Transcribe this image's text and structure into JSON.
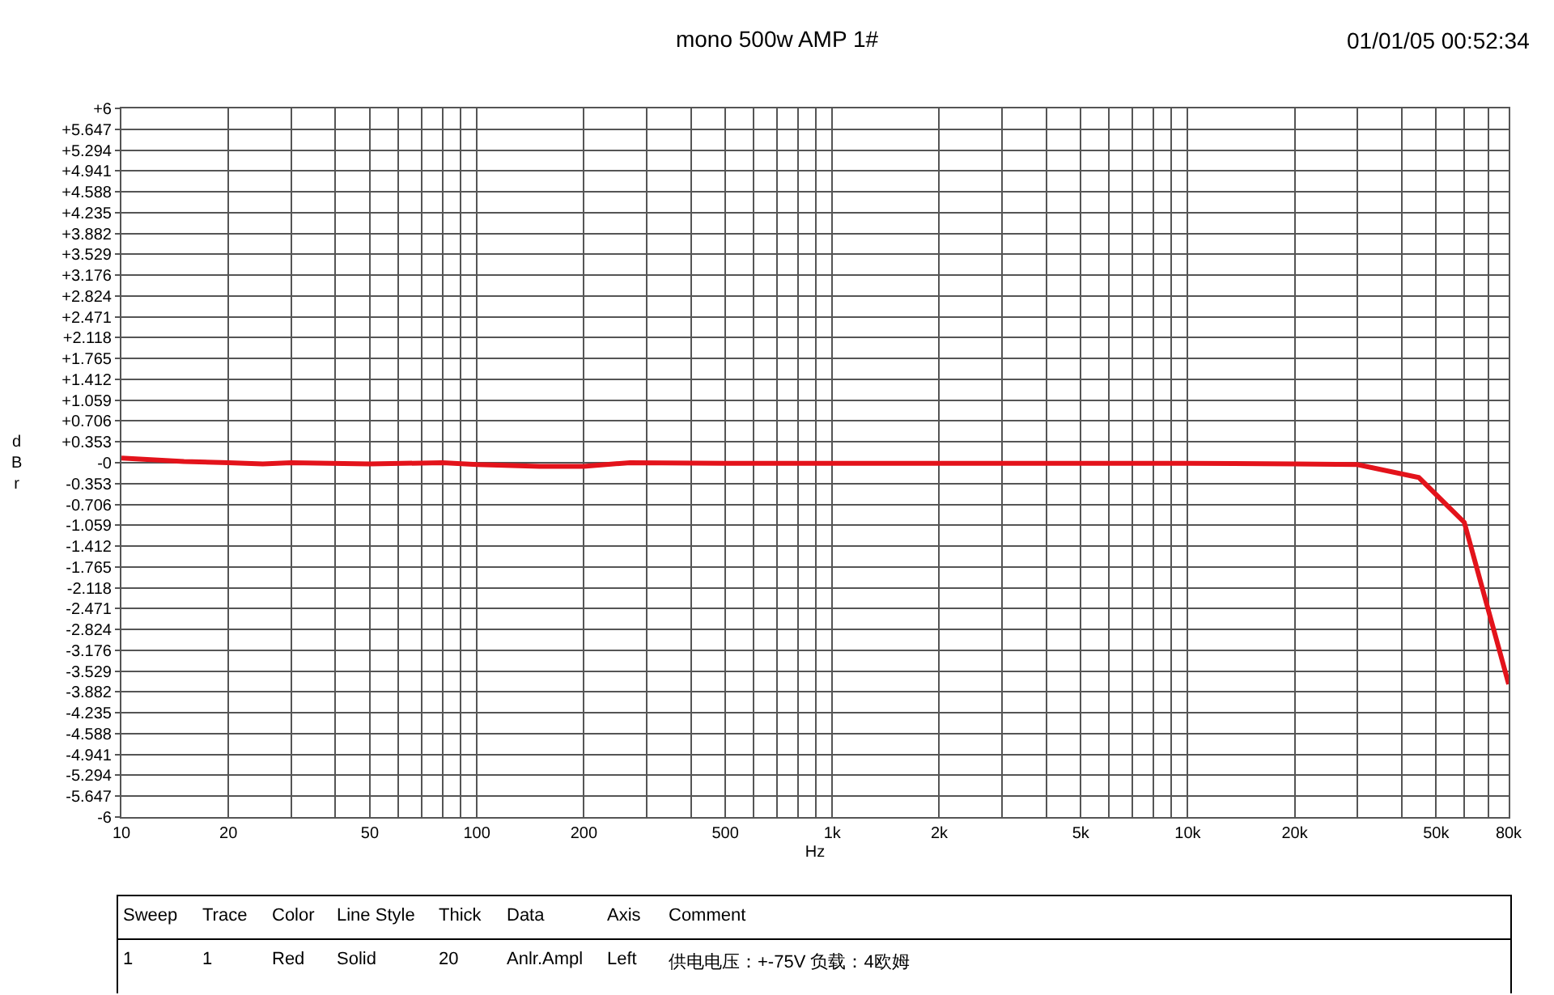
{
  "chart_data": {
    "type": "line",
    "title": "mono 500w AMP 1#",
    "xlabel": "Hz",
    "ylabel": "dBr",
    "annotations": [
      "01/01/05 00:52:34",
      "Sweep",
      "Trace",
      "Color",
      "Line Style",
      "Thick",
      "Data",
      "Axis",
      "Comment",
      "1",
      "1",
      "Red",
      "Solid",
      "20",
      "Anlr.Ampl",
      "Left",
      "供电电压：+-75V 负载：4欧姆"
    ],
    "log": "x",
    "grid": true,
    "marker": "none",
    "line_style": "solid",
    "xlim": [
      10,
      80000
    ],
    "ylim": [
      -6,
      6
    ],
    "xticks": [
      10,
      20,
      {
        "value": 30,
        "label": null
      },
      {
        "value": 40,
        "label": null
      },
      50,
      {
        "value": 60,
        "label": null
      },
      {
        "value": 70,
        "label": null
      },
      {
        "value": 80,
        "label": null
      },
      {
        "value": 90,
        "label": null
      },
      100,
      200,
      {
        "value": 300,
        "label": null
      },
      {
        "value": 400,
        "label": null
      },
      500,
      {
        "value": 600,
        "label": null
      },
      {
        "value": 700,
        "label": null
      },
      {
        "value": 800,
        "label": null
      },
      {
        "value": 900,
        "label": null
      },
      {
        "value": 1000,
        "label": "1k"
      },
      {
        "value": 2000,
        "label": "2k"
      },
      {
        "value": 3000,
        "label": null
      },
      {
        "value": 4000,
        "label": null
      },
      {
        "value": 5000,
        "label": "5k"
      },
      {
        "value": 6000,
        "label": null
      },
      {
        "value": 7000,
        "label": null
      },
      {
        "value": 8000,
        "label": null
      },
      {
        "value": 9000,
        "label": null
      },
      {
        "value": 10000,
        "label": "10k"
      },
      {
        "value": 20000,
        "label": "20k"
      },
      {
        "value": 30000,
        "label": null
      },
      {
        "value": 40000,
        "label": null
      },
      {
        "value": 50000,
        "label": "50k"
      },
      {
        "value": 60000,
        "label": null
      },
      {
        "value": 70000,
        "label": null
      },
      {
        "value": 80000,
        "label": "80k"
      }
    ],
    "yticks": [
      {
        "value": 6,
        "label": "+6"
      },
      {
        "value": 5.647,
        "label": "+5.647"
      },
      {
        "value": 5.294,
        "label": "+5.294"
      },
      {
        "value": 4.941,
        "label": "+4.941"
      },
      {
        "value": 4.588,
        "label": "+4.588"
      },
      {
        "value": 4.235,
        "label": "+4.235"
      },
      {
        "value": 3.882,
        "label": "+3.882"
      },
      {
        "value": 3.529,
        "label": "+3.529"
      },
      {
        "value": 3.176,
        "label": "+3.176"
      },
      {
        "value": 2.824,
        "label": "+2.824"
      },
      {
        "value": 2.471,
        "label": "+2.471"
      },
      {
        "value": 2.118,
        "label": "+2.118"
      },
      {
        "value": 1.765,
        "label": "+1.765"
      },
      {
        "value": 1.412,
        "label": "+1.412"
      },
      {
        "value": 1.059,
        "label": "+1.059"
      },
      {
        "value": 0.706,
        "label": "+0.706"
      },
      {
        "value": 0.353,
        "label": "+0.353"
      },
      {
        "value": 0,
        "label": "-0"
      },
      -0.353,
      -0.706,
      -1.059,
      -1.412,
      -1.765,
      -2.118,
      -2.471,
      -2.824,
      -3.176,
      -3.529,
      -3.882,
      -4.235,
      -4.588,
      -4.941,
      -5.294,
      -5.647,
      -6
    ],
    "x": [
      10,
      15,
      20,
      25,
      30,
      50,
      80,
      100,
      150,
      200,
      270,
      500,
      1000,
      10000,
      20000,
      30000,
      44700,
      60000,
      80000
    ],
    "series": [
      {
        "color": "#e3131b",
        "values": [
          0.08,
          0.02,
          0.0,
          -0.02,
          0.0,
          -0.02,
          0.0,
          -0.03,
          -0.06,
          -0.06,
          0.0,
          -0.01,
          -0.01,
          -0.01,
          -0.02,
          -0.03,
          -0.25,
          -1.01,
          -3.75
        ]
      }
    ]
  }
}
